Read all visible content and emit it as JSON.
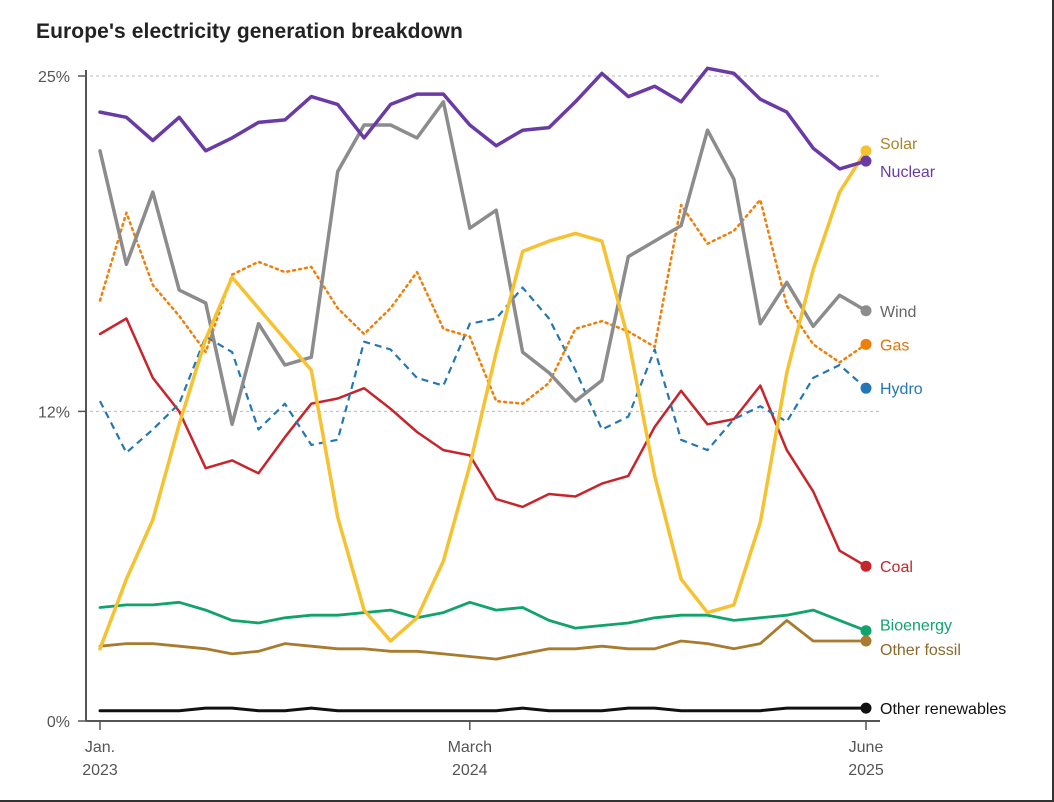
{
  "chart_data": {
    "type": "line",
    "title": "Europe's electricity generation breakdown",
    "ylim": [
      0,
      25
    ],
    "y_ticks": [
      {
        "value": 25,
        "label": "25%"
      },
      {
        "value": 12,
        "label": "12%"
      },
      {
        "value": 0,
        "label": "0%"
      }
    ],
    "x_range": [
      0,
      29
    ],
    "x_ticks": [
      {
        "index": 0,
        "line1": "Jan.",
        "line2": "2023"
      },
      {
        "index": 14,
        "line1": "March",
        "line2": "2024"
      },
      {
        "index": 29,
        "line1": "June",
        "line2": "2025"
      }
    ],
    "series": [
      {
        "name": "Solar",
        "color": "#f6c231",
        "style": "solid",
        "width": 3.5,
        "label_color": "#a8862a",
        "values": [
          2.8,
          5.5,
          7.8,
          11.5,
          14.8,
          17.2,
          16,
          14.8,
          13.6,
          7.9,
          4.3,
          3.1,
          4,
          6.2,
          9.9,
          14.3,
          18.2,
          18.6,
          18.9,
          18.6,
          14.8,
          9.5,
          5.5,
          4.2,
          4.5,
          7.7,
          13.5,
          17.5,
          20.5,
          22.1
        ]
      },
      {
        "name": "Nuclear",
        "color": "#6a3aa5",
        "style": "solid",
        "width": 3.5,
        "label_color": "#6a3aa5",
        "values": [
          23.6,
          23.4,
          22.5,
          23.4,
          22.1,
          22.6,
          23.2,
          23.3,
          24.2,
          23.9,
          22.6,
          23.9,
          24.3,
          24.3,
          23.1,
          22.3,
          22.9,
          23,
          24,
          25.1,
          24.2,
          24.6,
          24,
          25.3,
          25.1,
          24.1,
          23.6,
          22.2,
          21.4,
          21.7
        ]
      },
      {
        "name": "Wind",
        "color": "#8c8c8c",
        "style": "solid",
        "width": 3.5,
        "label_color": "#666666",
        "values": [
          22.1,
          17.7,
          20.5,
          16.7,
          16.2,
          11.5,
          15.4,
          13.8,
          14.1,
          21.3,
          23.1,
          23.1,
          22.6,
          24,
          19.1,
          19.8,
          14.3,
          13.5,
          12.4,
          13.2,
          18,
          18.6,
          19.2,
          22.9,
          21,
          15.4,
          17,
          15.3,
          16.5,
          15.9
        ]
      },
      {
        "name": "Gas",
        "color": "#f07f09",
        "style": "dotted",
        "width": 2.5,
        "label_color": "#e0740a",
        "values": [
          16.3,
          19.7,
          16.9,
          15.7,
          14.3,
          17.3,
          17.8,
          17.4,
          17.6,
          16,
          15,
          16,
          17.4,
          15.2,
          14.9,
          12.4,
          12.3,
          13.1,
          15.2,
          15.5,
          15.1,
          14.5,
          20,
          18.5,
          19,
          20.2,
          16.1,
          14.6,
          13.9,
          14.6
        ]
      },
      {
        "name": "Hydro",
        "color": "#2277b4",
        "style": "dashed",
        "width": 2.2,
        "label_color": "#2277b4",
        "values": [
          12.4,
          10.4,
          11.3,
          12.3,
          14.9,
          14.3,
          11.3,
          12.3,
          10.7,
          10.9,
          14.7,
          14.4,
          13.3,
          13,
          15.4,
          15.6,
          16.8,
          15.6,
          13.6,
          11.3,
          11.8,
          14.4,
          10.9,
          10.5,
          11.7,
          12.2,
          11.6,
          13.3,
          13.8,
          12.9
        ]
      },
      {
        "name": "Coal",
        "color": "#c8242b",
        "style": "solid",
        "width": 2.5,
        "label_color": "#c8242b",
        "values": [
          15,
          15.6,
          13.3,
          12,
          9.8,
          10.1,
          9.6,
          11,
          12.3,
          12.5,
          12.9,
          12.1,
          11.2,
          10.5,
          10.3,
          8.6,
          8.3,
          8.8,
          8.7,
          9.2,
          9.5,
          11.4,
          12.8,
          11.5,
          11.7,
          13,
          10.5,
          8.9,
          6.6,
          6
        ]
      },
      {
        "name": "Bioenergy",
        "color": "#10a36c",
        "style": "solid",
        "width": 2.8,
        "label_color": "#10a36c",
        "values": [
          4.4,
          4.5,
          4.5,
          4.6,
          4.3,
          3.9,
          3.8,
          4.0,
          4.1,
          4.1,
          4.2,
          4.3,
          4.0,
          4.2,
          4.6,
          4.3,
          4.4,
          3.9,
          3.6,
          3.7,
          3.8,
          4.0,
          4.1,
          4.1,
          3.9,
          4.0,
          4.1,
          4.3,
          3.9,
          3.5
        ]
      },
      {
        "name": "Other fossil",
        "color": "#a87b2f",
        "style": "solid",
        "width": 2.8,
        "label_color": "#8a6a2c",
        "values": [
          2.9,
          3,
          3,
          2.9,
          2.8,
          2.6,
          2.7,
          3,
          2.9,
          2.8,
          2.8,
          2.7,
          2.7,
          2.6,
          2.5,
          2.4,
          2.6,
          2.8,
          2.8,
          2.9,
          2.8,
          2.8,
          3.1,
          3,
          2.8,
          3,
          3.9,
          3.1,
          3.1,
          3.1
        ]
      },
      {
        "name": "Other renewables",
        "color": "#111111",
        "style": "solid",
        "width": 3,
        "label_color": "#111111",
        "values": [
          0.4,
          0.4,
          0.4,
          0.4,
          0.5,
          0.5,
          0.4,
          0.4,
          0.5,
          0.4,
          0.4,
          0.4,
          0.4,
          0.4,
          0.4,
          0.4,
          0.5,
          0.4,
          0.4,
          0.4,
          0.5,
          0.5,
          0.4,
          0.4,
          0.4,
          0.4,
          0.5,
          0.5,
          0.5,
          0.5
        ]
      }
    ],
    "grid": true,
    "legend": "inline-right"
  }
}
